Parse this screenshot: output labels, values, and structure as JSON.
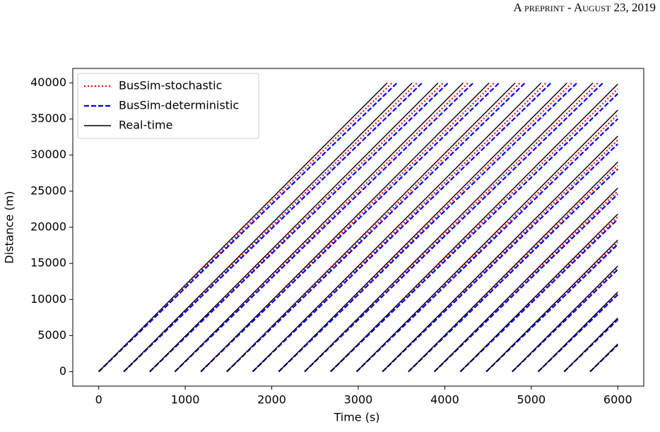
{
  "header": "A preprint - August 23, 2019",
  "chart_data": {
    "type": "line",
    "xlabel": "Time (s)",
    "ylabel": "Distance (m)",
    "xlim": [
      -300,
      6300
    ],
    "ylim": [
      -2000,
      42000
    ],
    "xticks": [
      0,
      1000,
      2000,
      3000,
      4000,
      5000,
      6000
    ],
    "yticks": [
      0,
      5000,
      10000,
      15000,
      20000,
      25000,
      30000,
      35000,
      40000
    ],
    "grid": false,
    "legend": "upper left",
    "series": [
      {
        "name": "BusSim-stochastic",
        "color": "#ff0000",
        "style": "dotted",
        "x": [
          0,
          1695,
          3390,
          null,
          290,
          1985,
          3680,
          null,
          590,
          2285,
          3980,
          null,
          880,
          2575,
          4270,
          null,
          1180,
          2875,
          4570,
          null,
          1480,
          3175,
          4870,
          null,
          1780,
          3475,
          5170,
          null,
          2080,
          3775,
          5470,
          null,
          2380,
          4075,
          5770,
          null,
          2680,
          4375,
          6000,
          null,
          2980,
          4675,
          6000,
          null,
          3280,
          4975,
          6000,
          null,
          3580,
          5275,
          6000,
          null,
          3880,
          5575,
          6000,
          null,
          4180,
          5875,
          6000,
          null,
          4480,
          6000,
          null,
          4780,
          6000,
          null,
          5080,
          6000,
          null,
          5380,
          6000,
          null,
          5680,
          6000
        ],
        "values": [
          0,
          20000,
          40000,
          null,
          0,
          20000,
          40000,
          null,
          0,
          20000,
          40000,
          null,
          0,
          20000,
          40000,
          null,
          0,
          20000,
          40000,
          null,
          0,
          20000,
          40000,
          null,
          0,
          20000,
          40000,
          null,
          0,
          20000,
          40000,
          null,
          0,
          20000,
          40000,
          null,
          0,
          20000,
          39176,
          null,
          0,
          20000,
          35636,
          null,
          0,
          20000,
          32096,
          null,
          0,
          20000,
          28556,
          null,
          0,
          20000,
          25016,
          null,
          0,
          20000,
          21476,
          null,
          0,
          17936,
          null,
          0,
          14396,
          null,
          0,
          10856,
          null,
          0,
          7316,
          null,
          0,
          3776
        ]
      },
      {
        "name": "BusSim-deterministic",
        "color": "#0000ff",
        "style": "dashed",
        "x": [
          0,
          1724,
          3448,
          null,
          290,
          2014,
          3738,
          null,
          590,
          2314,
          4038,
          null,
          880,
          2604,
          4328,
          null,
          1180,
          2904,
          4628,
          null,
          1480,
          3204,
          4928,
          null,
          1780,
          3504,
          5228,
          null,
          2080,
          3804,
          5528,
          null,
          2380,
          4104,
          5828,
          null,
          2680,
          4404,
          6000,
          null,
          2980,
          4704,
          6000,
          null,
          3280,
          5004,
          6000,
          null,
          3580,
          5304,
          6000,
          null,
          3880,
          5604,
          6000,
          null,
          4180,
          5904,
          6000,
          null,
          4480,
          6000,
          null,
          4780,
          6000,
          null,
          5080,
          6000,
          null,
          5380,
          6000,
          null,
          5680,
          6000
        ],
        "values": [
          0,
          20000,
          40000,
          null,
          0,
          20000,
          40000,
          null,
          0,
          20000,
          40000,
          null,
          0,
          20000,
          40000,
          null,
          0,
          20000,
          40000,
          null,
          0,
          20000,
          40000,
          null,
          0,
          20000,
          40000,
          null,
          0,
          20000,
          40000,
          null,
          0,
          20000,
          40000,
          null,
          0,
          20000,
          38512,
          null,
          0,
          20000,
          35032,
          null,
          0,
          20000,
          31552,
          null,
          0,
          20000,
          28072,
          null,
          0,
          20000,
          24592,
          null,
          0,
          20000,
          21112,
          null,
          0,
          17632,
          null,
          0,
          14152,
          null,
          0,
          10672,
          null,
          0,
          7192,
          null,
          0,
          3712
        ]
      },
      {
        "name": "Real-time",
        "color": "#000000",
        "style": "solid",
        "x": [
          0,
          1667,
          3333,
          null,
          290,
          1957,
          3623,
          null,
          590,
          2257,
          3923,
          null,
          880,
          2547,
          4213,
          null,
          1180,
          2847,
          4513,
          null,
          1480,
          3147,
          4813,
          null,
          1780,
          3447,
          5113,
          null,
          2080,
          3747,
          5413,
          null,
          2380,
          4047,
          5713,
          null,
          2680,
          4347,
          6000,
          null,
          2980,
          4647,
          6000,
          null,
          3280,
          4947,
          6000,
          null,
          3580,
          5247,
          6000,
          null,
          3880,
          5547,
          6000,
          null,
          4180,
          5847,
          6000,
          null,
          4480,
          6000,
          null,
          4780,
          6000,
          null,
          5080,
          6000,
          null,
          5380,
          6000,
          null,
          5680,
          6000
        ],
        "values": [
          0,
          20000,
          40000,
          null,
          0,
          20000,
          40000,
          null,
          0,
          20000,
          40000,
          null,
          0,
          20000,
          40000,
          null,
          0,
          20000,
          40000,
          null,
          0,
          20000,
          40000,
          null,
          0,
          20000,
          40000,
          null,
          0,
          20000,
          40000,
          null,
          0,
          20000,
          40000,
          null,
          0,
          20000,
          39840,
          null,
          0,
          20000,
          36240,
          null,
          0,
          20000,
          32640,
          null,
          0,
          20000,
          29040,
          null,
          0,
          20000,
          25440,
          null,
          0,
          20000,
          21840,
          null,
          0,
          18240,
          null,
          0,
          14640,
          null,
          0,
          11040,
          null,
          0,
          7440,
          null,
          0,
          3840
        ]
      }
    ]
  }
}
